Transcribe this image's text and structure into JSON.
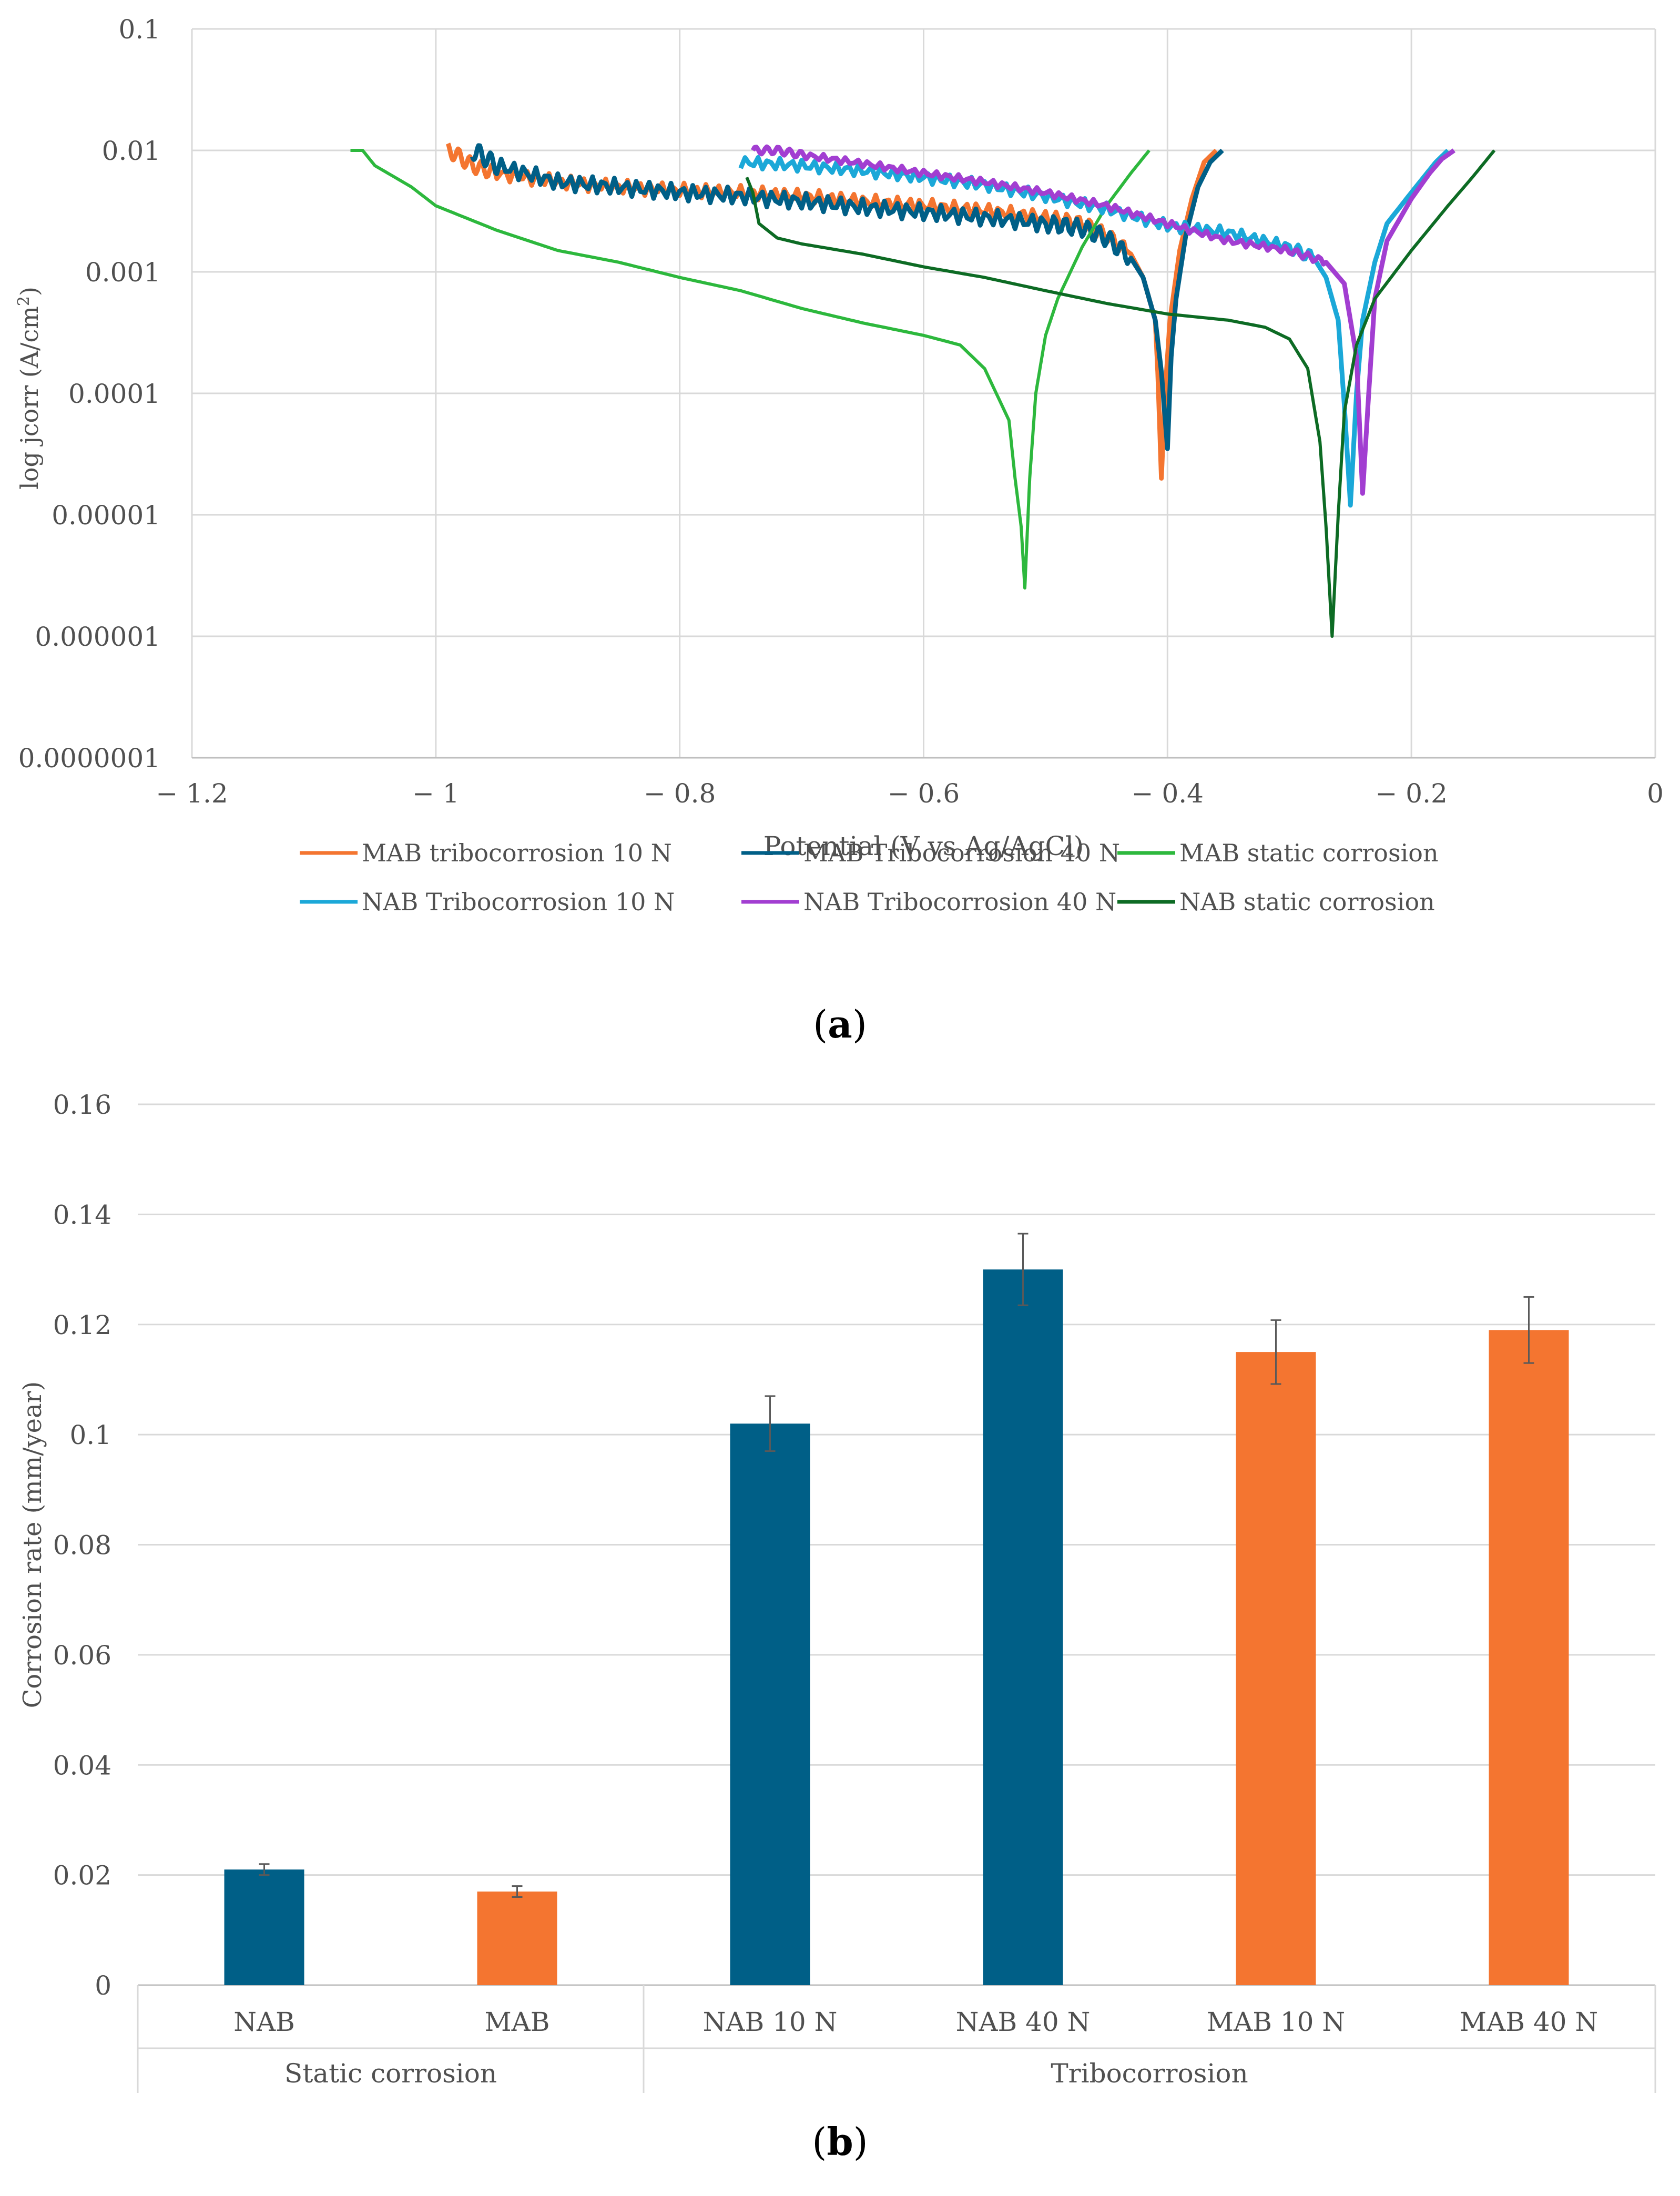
{
  "chart_data": [
    {
      "type": "line",
      "panel_label": "a",
      "xlabel": "Potential (V vs Ag/AgCl)",
      "ylabel": "log jcorr (A/cm",
      "ylabel_sup": "2",
      "ylabel_end": ")",
      "yscale": "log",
      "xlim": [
        -1.2,
        0
      ],
      "ylim": [
        1e-07,
        0.1
      ],
      "x_ticks": [
        -1.2,
        -1,
        -0.8,
        -0.6,
        -0.4,
        -0.2,
        0
      ],
      "x_tick_labels": [
        "− 1.2",
        "− 1",
        "− 0.8",
        "− 0.6",
        "− 0.4",
        "− 0.2",
        "0"
      ],
      "y_ticks": [
        0.1,
        0.01,
        0.001,
        0.0001,
        1e-05,
        1e-06,
        1e-07
      ],
      "y_tick_labels": [
        "0.1",
        "0.01",
        "0.001",
        "0.0001",
        "0.00001",
        "0.000001",
        "0.0000001"
      ],
      "grid": true,
      "legend_position": "bottom",
      "series": [
        {
          "name": "MAB tribocorrosion 10 N",
          "color": "#f47530",
          "ecorr": -0.405,
          "jmin": 2e-05,
          "x": [
            -0.99,
            -0.985,
            -0.97,
            -0.95,
            -0.9,
            -0.85,
            -0.8,
            -0.75,
            -0.7,
            -0.65,
            -0.6,
            -0.55,
            -0.5,
            -0.47,
            -0.45,
            -0.43,
            -0.42,
            -0.41,
            -0.408,
            -0.405,
            -0.402,
            -0.398,
            -0.39,
            -0.38,
            -0.37,
            -0.36
          ],
          "y": [
            0.01,
            0.0095,
            0.0075,
            0.0065,
            0.0055,
            0.005,
            0.0047,
            0.0045,
            0.0042,
            0.0038,
            0.0035,
            0.0032,
            0.0028,
            0.0025,
            0.002,
            0.0014,
            0.0009,
            0.0004,
            0.00015,
            2e-05,
            0.0001,
            0.0004,
            0.0015,
            0.004,
            0.008,
            0.01
          ],
          "wiggle": 0.06
        },
        {
          "name": "MAB Tribocorrosion 40 N",
          "color": "#005f87",
          "ecorr": -0.4,
          "jmin": 3.5e-05,
          "x": [
            -0.97,
            -0.965,
            -0.95,
            -0.9,
            -0.85,
            -0.8,
            -0.75,
            -0.7,
            -0.65,
            -0.6,
            -0.55,
            -0.5,
            -0.47,
            -0.45,
            -0.43,
            -0.42,
            -0.41,
            -0.405,
            -0.4,
            -0.397,
            -0.393,
            -0.385,
            -0.375,
            -0.365,
            -0.355
          ],
          "y": [
            0.01,
            0.0095,
            0.0075,
            0.0055,
            0.005,
            0.0045,
            0.0042,
            0.0038,
            0.0034,
            0.0031,
            0.0028,
            0.0025,
            0.0023,
            0.0019,
            0.0013,
            0.0009,
            0.0004,
            0.00015,
            3.5e-05,
            0.0002,
            0.0006,
            0.002,
            0.005,
            0.008,
            0.01
          ],
          "wiggle": 0.07
        },
        {
          "name": "MAB static corrosion",
          "color": "#2db83d",
          "ecorr": -0.517,
          "jmin": 2.5e-06,
          "x": [
            -1.07,
            -1.06,
            -1.05,
            -1.02,
            -1.0,
            -0.95,
            -0.9,
            -0.85,
            -0.8,
            -0.75,
            -0.7,
            -0.65,
            -0.6,
            -0.57,
            -0.55,
            -0.53,
            -0.525,
            -0.52,
            -0.517,
            -0.513,
            -0.508,
            -0.5,
            -0.49,
            -0.47,
            -0.45,
            -0.43,
            -0.415
          ],
          "y": [
            0.01,
            0.01,
            0.0075,
            0.005,
            0.0035,
            0.0022,
            0.0015,
            0.0012,
            0.0009,
            0.0007,
            0.0005,
            0.00038,
            0.0003,
            0.00025,
            0.00016,
            6e-05,
            2e-05,
            8e-06,
            2.5e-06,
            2e-05,
            0.0001,
            0.0003,
            0.0006,
            0.0016,
            0.0035,
            0.0065,
            0.01
          ],
          "wiggle": 0
        },
        {
          "name": "NAB Tribocorrosion 10 N",
          "color": "#1ba8d8",
          "ecorr": -0.25,
          "jmin": 1.2e-05,
          "x": [
            -0.75,
            -0.7,
            -0.65,
            -0.6,
            -0.55,
            -0.5,
            -0.45,
            -0.4,
            -0.35,
            -0.3,
            -0.28,
            -0.27,
            -0.26,
            -0.255,
            -0.25,
            -0.245,
            -0.24,
            -0.23,
            -0.22,
            -0.2,
            -0.19,
            -0.18,
            -0.17
          ],
          "y": [
            0.008,
            0.0075,
            0.0068,
            0.006,
            0.0052,
            0.0042,
            0.0033,
            0.0024,
            0.0021,
            0.0016,
            0.0013,
            0.0009,
            0.0004,
            8e-05,
            1.2e-05,
            0.0001,
            0.0004,
            0.0012,
            0.0025,
            0.0045,
            0.006,
            0.008,
            0.01
          ],
          "wiggle": 0.05
        },
        {
          "name": "NAB Tribocorrosion 40 N",
          "color": "#a23ed1",
          "ecorr": -0.24,
          "jmin": 1.5e-05,
          "x": [
            -0.74,
            -0.72,
            -0.7,
            -0.65,
            -0.6,
            -0.55,
            -0.5,
            -0.45,
            -0.4,
            -0.35,
            -0.3,
            -0.27,
            -0.255,
            -0.245,
            -0.24,
            -0.235,
            -0.23,
            -0.22,
            -0.2,
            -0.185,
            -0.175,
            -0.165
          ],
          "y": [
            0.01,
            0.01,
            0.0092,
            0.0078,
            0.0065,
            0.0055,
            0.0045,
            0.0035,
            0.0025,
            0.0018,
            0.0015,
            0.0012,
            0.0008,
            0.0002,
            1.5e-05,
            0.0001,
            0.0006,
            0.0018,
            0.004,
            0.0065,
            0.0085,
            0.01
          ],
          "wiggle": 0.03
        },
        {
          "name": "NAB static corrosion",
          "color": "#0d6b24",
          "ecorr": -0.265,
          "jmin": 1e-06,
          "x": [
            -0.745,
            -0.74,
            -0.735,
            -0.72,
            -0.7,
            -0.65,
            -0.6,
            -0.55,
            -0.5,
            -0.45,
            -0.4,
            -0.35,
            -0.32,
            -0.3,
            -0.285,
            -0.275,
            -0.27,
            -0.265,
            -0.26,
            -0.255,
            -0.245,
            -0.23,
            -0.2,
            -0.17,
            -0.15,
            -0.132
          ],
          "y": [
            0.006,
            0.0045,
            0.0025,
            0.0019,
            0.0017,
            0.0014,
            0.0011,
            0.0009,
            0.0007,
            0.00055,
            0.00045,
            0.0004,
            0.00035,
            0.00028,
            0.00016,
            4e-05,
            8e-06,
            1e-06,
            1e-05,
            7e-05,
            0.00025,
            0.0006,
            0.0015,
            0.0035,
            0.006,
            0.01
          ],
          "wiggle": 0
        }
      ]
    },
    {
      "type": "bar",
      "panel_label": "b",
      "ylabel": "Corrosion rate (mm/year)",
      "ylim": [
        0,
        0.16
      ],
      "y_ticks": [
        0,
        0.02,
        0.04,
        0.06,
        0.08,
        0.1,
        0.12,
        0.14,
        0.16
      ],
      "y_tick_labels": [
        "0",
        "0.02",
        "0.04",
        "0.06",
        "0.08",
        "0.1",
        "0.12",
        "0.14",
        "0.16"
      ],
      "grid": true,
      "categories": [
        "NAB",
        "MAB",
        "NAB 10 N",
        "NAB 40 N",
        "MAB 10 N",
        "MAB 40 N"
      ],
      "groups": [
        {
          "label": "Static corrosion",
          "count": 2
        },
        {
          "label": "Tribocorrosion",
          "count": 4
        }
      ],
      "values": [
        0.021,
        0.017,
        0.102,
        0.13,
        0.115,
        0.119
      ],
      "errors": [
        0.001,
        0.001,
        0.005,
        0.0065,
        0.0058,
        0.006
      ],
      "colors": [
        "#005f87",
        "#f47530",
        "#005f87",
        "#005f87",
        "#f47530",
        "#f47530"
      ]
    }
  ]
}
